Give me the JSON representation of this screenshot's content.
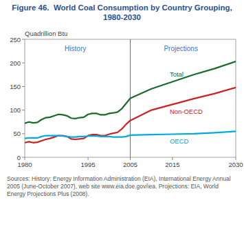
{
  "chart_data": {
    "type": "line",
    "title": "Figure 46.  World Coal Consumption by Country Grouping, 1980-2030",
    "y_label": "Quadrillion Btu",
    "x": [
      1980,
      1981,
      1982,
      1983,
      1984,
      1985,
      1986,
      1987,
      1988,
      1989,
      1990,
      1991,
      1992,
      1993,
      1994,
      1995,
      1996,
      1997,
      1998,
      1999,
      2000,
      2001,
      2002,
      2003,
      2004,
      2005,
      2010,
      2015,
      2020,
      2025,
      2030
    ],
    "series": [
      {
        "name": "Total",
        "color": "#1a6b2a",
        "values": [
          72,
          75,
          73,
          74,
          80,
          84,
          85,
          88,
          91,
          90,
          88,
          83,
          82,
          84,
          85,
          91,
          93,
          93,
          90,
          90,
          93,
          94,
          96,
          103,
          114,
          125,
          145,
          160,
          175,
          188,
          203
        ]
      },
      {
        "name": "Non-OECD",
        "color": "#cc2222",
        "values": [
          31,
          33,
          31,
          32,
          35,
          38,
          40,
          43,
          46,
          46,
          44,
          39,
          38,
          39,
          40,
          46,
          48,
          48,
          46,
          46,
          49,
          51,
          53,
          60,
          70,
          78,
          100,
          112,
          124,
          135,
          148
        ]
      },
      {
        "name": "OECD",
        "color": "#00aadd",
        "values": [
          40,
          41,
          41,
          41,
          44,
          46,
          46,
          46,
          46,
          45,
          44,
          43,
          43,
          44,
          44,
          45,
          45,
          45,
          44,
          44,
          44,
          43,
          43,
          43,
          44,
          47,
          48,
          49,
          50,
          52,
          55
        ]
      }
    ],
    "xlim": [
      1980,
      2030
    ],
    "ylim": [
      0,
      250
    ],
    "xticks": [
      1980,
      1995,
      2005,
      2015,
      2030
    ],
    "yticks": [
      0,
      50,
      100,
      150,
      200,
      250
    ],
    "divider_x": 2005,
    "annotations": [
      {
        "text": "History",
        "x": 1992,
        "y": 238
      },
      {
        "text": "Projections",
        "x": 2017,
        "y": 238
      }
    ],
    "source": "Sources: History: Energy Information Administration (EIA), International Energy Annual 2005 (June-October 2007), web site www.eia.doe.gov/iea. Projections: EIA, World Energy Projections Plus (2008).",
    "grid": false
  }
}
